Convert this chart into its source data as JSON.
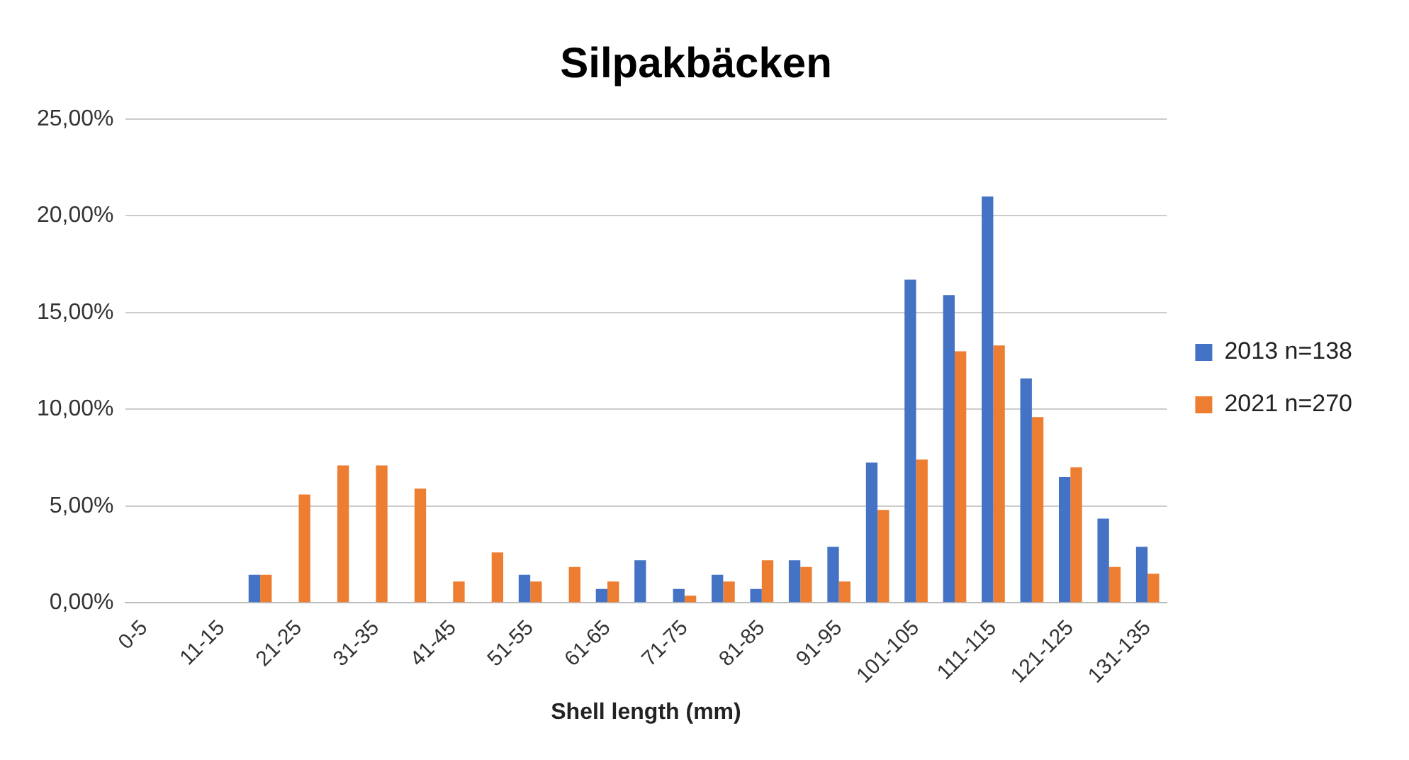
{
  "chart_data": {
    "type": "bar",
    "title": "Silpakbäcken",
    "xlabel": "Shell length (mm)",
    "categories": [
      "0-5",
      null,
      "11-15",
      null,
      "21-25",
      null,
      "31-35",
      null,
      "41-45",
      null,
      "51-55",
      null,
      "61-65",
      null,
      "71-75",
      null,
      "81-85",
      null,
      "91-95",
      null,
      "101-105",
      null,
      "111-115",
      null,
      "121-125",
      null,
      "131-135"
    ],
    "series": [
      {
        "name": "2013 n=138",
        "color": "#4472c4",
        "values": [
          0,
          0,
          0,
          1.45,
          0,
          0,
          0,
          0,
          0,
          0,
          1.45,
          0,
          0.72,
          2.2,
          0.72,
          1.45,
          0.72,
          2.2,
          2.9,
          7.25,
          16.7,
          15.9,
          21.0,
          11.6,
          6.5,
          4.35,
          2.9
        ]
      },
      {
        "name": "2021 n=270",
        "color": "#ed7d31",
        "values": [
          0,
          0,
          0,
          1.45,
          5.6,
          7.1,
          7.1,
          5.9,
          1.1,
          2.6,
          1.1,
          1.85,
          1.1,
          0,
          0.37,
          1.1,
          2.2,
          1.85,
          1.1,
          4.8,
          7.4,
          13.0,
          13.3,
          9.6,
          7.0,
          1.85,
          1.5
        ]
      }
    ],
    "ylim": [
      0,
      25
    ],
    "yticks": [
      {
        "value": 0,
        "label": "0,00%"
      },
      {
        "value": 5,
        "label": "5,00%"
      },
      {
        "value": 10,
        "label": "10,00%"
      },
      {
        "value": 15,
        "label": "15,00%"
      },
      {
        "value": 20,
        "label": "20,00%"
      },
      {
        "value": 25,
        "label": "25,00%"
      }
    ],
    "grid": "y",
    "legend": "right"
  }
}
